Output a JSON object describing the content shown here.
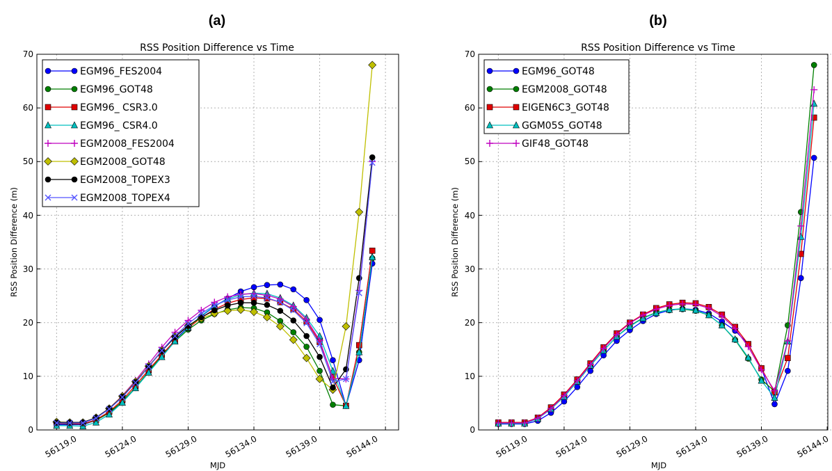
{
  "panels": [
    {
      "letter": "(a)"
    },
    {
      "letter": "(b)"
    }
  ],
  "chart_data": [
    {
      "type": "line",
      "title": "RSS Position Difference vs Time",
      "xlabel": "MJD",
      "ylabel": "RSS Position Difference (m)",
      "xlim": [
        56117.5,
        56145.0
      ],
      "ylim": [
        0,
        70
      ],
      "xticks": [
        56119,
        56124,
        56129,
        56134,
        56139,
        56144
      ],
      "xtick_labels": [
        "56119.0",
        "56124.0",
        "56129.0",
        "56134.0",
        "56139.0",
        "56144.0"
      ],
      "yticks": [
        0,
        10,
        20,
        30,
        40,
        50,
        60,
        70
      ],
      "ytick_labels": [
        "0",
        "10",
        "20",
        "30",
        "40",
        "50",
        "60",
        "70"
      ],
      "grid": true,
      "legend_position": "top-left",
      "x": [
        56119.0,
        56120.0,
        56121.0,
        56122.0,
        56123.0,
        56124.0,
        56125.0,
        56126.0,
        56127.0,
        56128.0,
        56129.0,
        56130.0,
        56131.0,
        56132.0,
        56133.0,
        56134.0,
        56135.0,
        56136.0,
        56137.0,
        56138.0,
        56139.0,
        56140.0,
        56141.0,
        56142.0,
        56143.0
      ],
      "series": [
        {
          "name": "EGM96_FES2004",
          "color": "#0000ff",
          "marker": "circle",
          "values": [
            1.0,
            1.0,
            1.0,
            1.8,
            3.2,
            5.2,
            7.8,
            10.8,
            13.8,
            16.8,
            19.2,
            21.2,
            23.0,
            24.5,
            25.8,
            26.6,
            27.0,
            27.1,
            26.2,
            24.2,
            20.5,
            13.0,
            4.5,
            13.0,
            31.0
          ]
        },
        {
          "name": "EGM96_GOT48",
          "color": "#007f00",
          "marker": "circle",
          "values": [
            1.2,
            1.1,
            1.1,
            1.8,
            3.2,
            5.3,
            7.9,
            10.9,
            13.8,
            16.5,
            18.7,
            20.4,
            21.6,
            22.4,
            22.8,
            22.7,
            21.9,
            20.3,
            18.2,
            15.5,
            11.0,
            4.7,
            4.5,
            14.5,
            32.0
          ]
        },
        {
          "name": "EGM96_ CSR3.0",
          "color": "#e00000",
          "marker": "square",
          "values": [
            1.2,
            1.2,
            1.1,
            1.9,
            3.4,
            5.6,
            8.3,
            11.2,
            14.0,
            16.7,
            19.0,
            20.9,
            22.5,
            23.6,
            24.3,
            24.6,
            24.5,
            23.8,
            22.5,
            20.2,
            16.4,
            9.8,
            4.5,
            15.8,
            33.4
          ]
        },
        {
          "name": "EGM96_ CSR4.0",
          "color": "#00bfbf",
          "marker": "triangle",
          "values": [
            0.8,
            0.8,
            0.7,
            1.4,
            2.9,
            5.1,
            7.8,
            10.7,
            13.6,
            16.5,
            19.1,
            21.3,
            23.1,
            24.4,
            25.2,
            25.5,
            25.4,
            24.6,
            23.2,
            20.9,
            17.5,
            11.0,
            4.5,
            14.5,
            32.2
          ]
        },
        {
          "name": "EGM2008_FES2004",
          "color": "#bf00bf",
          "marker": "plus",
          "values": [
            1.3,
            1.3,
            1.3,
            2.3,
            4.0,
            6.4,
            9.2,
            12.3,
            15.4,
            18.2,
            20.4,
            22.3,
            23.8,
            24.8,
            25.3,
            25.4,
            25.1,
            24.4,
            23.0,
            20.6,
            16.7,
            9.6,
            9.5,
            26.0,
            50.0
          ]
        },
        {
          "name": "EGM2008_GOT48",
          "color": "#bfbf00",
          "marker": "diamond",
          "values": [
            1.5,
            1.4,
            1.4,
            2.3,
            4.0,
            6.3,
            9.0,
            11.9,
            14.8,
            17.4,
            19.4,
            20.8,
            21.7,
            22.2,
            22.4,
            22.0,
            21.0,
            19.3,
            16.8,
            13.4,
            9.5,
            7.5,
            19.3,
            40.6,
            68.0
          ]
        },
        {
          "name": "EGM2008_TOPEX3",
          "color": "#000000",
          "marker": "circle",
          "values": [
            1.4,
            1.4,
            1.4,
            2.3,
            4.0,
            6.2,
            8.9,
            11.8,
            14.7,
            17.3,
            19.4,
            21.0,
            22.3,
            23.2,
            23.7,
            23.7,
            23.3,
            22.2,
            20.4,
            17.5,
            13.6,
            7.9,
            11.3,
            28.3,
            50.8
          ]
        },
        {
          "name": "EGM2008_TOPEX4",
          "color": "#5555ff",
          "marker": "x",
          "values": [
            1.3,
            1.3,
            1.3,
            2.2,
            3.9,
            6.1,
            8.8,
            11.8,
            14.8,
            17.5,
            19.8,
            21.7,
            23.2,
            24.2,
            24.8,
            24.9,
            24.6,
            23.8,
            22.3,
            19.9,
            16.0,
            9.0,
            9.5,
            25.5,
            49.8
          ]
        }
      ]
    },
    {
      "type": "line",
      "title": "RSS Position Difference vs Time",
      "xlabel": "MJD",
      "ylabel": "RSS Position Difference (m)",
      "xlim": [
        56117.5,
        56145.0
      ],
      "ylim": [
        0,
        70
      ],
      "xticks": [
        56119,
        56124,
        56129,
        56134,
        56139,
        56144
      ],
      "xtick_labels": [
        "56119.0",
        "56124.0",
        "56129.0",
        "56134.0",
        "56139.0",
        "56144.0"
      ],
      "yticks": [
        0,
        10,
        20,
        30,
        40,
        50,
        60,
        70
      ],
      "ytick_labels": [
        "0",
        "10",
        "20",
        "30",
        "40",
        "50",
        "60",
        "70"
      ],
      "grid": true,
      "legend_position": "top-left",
      "x": [
        56119.0,
        56120.0,
        56121.0,
        56122.0,
        56123.0,
        56124.0,
        56125.0,
        56126.0,
        56127.0,
        56128.0,
        56129.0,
        56130.0,
        56131.0,
        56132.0,
        56133.0,
        56134.0,
        56135.0,
        56136.0,
        56137.0,
        56138.0,
        56139.0,
        56140.0,
        56141.0,
        56142.0,
        56143.0
      ],
      "series": [
        {
          "name": "EGM96_GOT48",
          "color": "#0000ff",
          "marker": "circle",
          "values": [
            1.1,
            1.1,
            1.1,
            1.7,
            3.2,
            5.3,
            8.0,
            11.0,
            13.9,
            16.6,
            18.6,
            20.3,
            21.6,
            22.3,
            22.6,
            22.4,
            21.7,
            20.2,
            18.5,
            16.0,
            11.5,
            4.8,
            11.0,
            28.3,
            50.7
          ]
        },
        {
          "name": "EGM2008_GOT48",
          "color": "#007f00",
          "marker": "circle",
          "values": [
            1.3,
            1.3,
            1.3,
            2.2,
            4.0,
            6.3,
            9.0,
            12.0,
            14.8,
            17.4,
            19.4,
            20.9,
            21.9,
            22.4,
            22.5,
            22.2,
            21.4,
            19.5,
            16.8,
            13.3,
            9.4,
            7.2,
            19.5,
            40.6,
            68.0
          ]
        },
        {
          "name": "EIGEN6C3_GOT48",
          "color": "#e00000",
          "marker": "square",
          "values": [
            1.4,
            1.4,
            1.4,
            2.3,
            4.2,
            6.6,
            9.4,
            12.4,
            15.4,
            18.0,
            20.0,
            21.5,
            22.7,
            23.4,
            23.7,
            23.6,
            22.9,
            21.5,
            19.2,
            16.0,
            11.5,
            7.0,
            13.4,
            32.8,
            58.2
          ]
        },
        {
          "name": "GGM05S_GOT48",
          "color": "#00bfbf",
          "marker": "triangle",
          "values": [
            1.2,
            1.2,
            1.2,
            2.1,
            3.9,
            6.2,
            9.0,
            12.0,
            14.8,
            17.4,
            19.3,
            20.8,
            21.8,
            22.4,
            22.6,
            22.3,
            21.4,
            19.5,
            16.9,
            13.5,
            9.2,
            6.0,
            16.5,
            36.0,
            60.8
          ]
        },
        {
          "name": "GIF48_GOT48",
          "color": "#bf00bf",
          "marker": "plus",
          "values": [
            1.3,
            1.3,
            1.3,
            2.2,
            4.0,
            6.4,
            9.2,
            12.2,
            15.2,
            17.8,
            19.9,
            21.4,
            22.5,
            23.2,
            23.5,
            23.4,
            22.7,
            21.2,
            18.9,
            15.5,
            11.2,
            7.3,
            16.6,
            38.0,
            63.4
          ]
        }
      ]
    }
  ]
}
